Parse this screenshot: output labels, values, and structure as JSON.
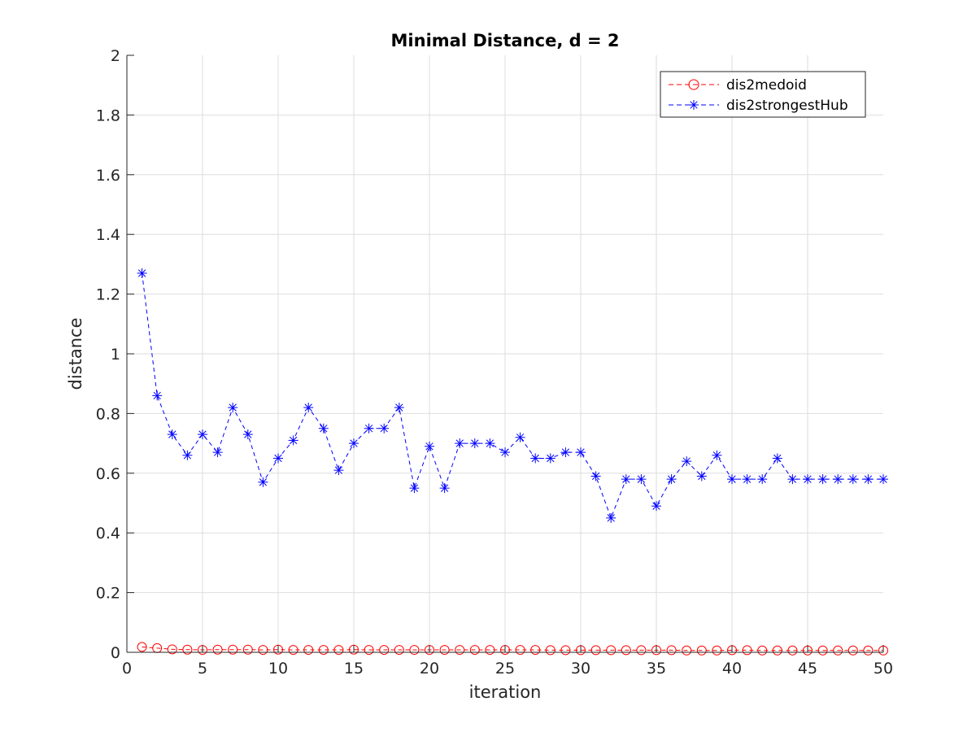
{
  "chart_data": {
    "type": "line",
    "title": "Minimal Distance, d = 2",
    "xlabel": "iteration",
    "ylabel": "distance",
    "xlim": [
      0,
      50
    ],
    "ylim": [
      0,
      2
    ],
    "xticks": [
      0,
      5,
      10,
      15,
      20,
      25,
      30,
      35,
      40,
      45,
      50
    ],
    "xtick_labels": [
      "0",
      "5",
      "10",
      "15",
      "20",
      "25",
      "30",
      "35",
      "40",
      "45",
      "50"
    ],
    "yticks": [
      0,
      0.2,
      0.4,
      0.6,
      0.8,
      1,
      1.2,
      1.4,
      1.6,
      1.8,
      2
    ],
    "ytick_labels": [
      "0",
      "0.2",
      "0.4",
      "0.6",
      "0.8",
      "1",
      "1.2",
      "1.4",
      "1.6",
      "1.8",
      "2"
    ],
    "grid": true,
    "legend_position": "top-right",
    "x": [
      1,
      2,
      3,
      4,
      5,
      6,
      7,
      8,
      9,
      10,
      11,
      12,
      13,
      14,
      15,
      16,
      17,
      18,
      19,
      20,
      21,
      22,
      23,
      24,
      25,
      26,
      27,
      28,
      29,
      30,
      31,
      32,
      33,
      34,
      35,
      36,
      37,
      38,
      39,
      40,
      41,
      42,
      43,
      44,
      45,
      46,
      47,
      48,
      49,
      50
    ],
    "series": [
      {
        "name": "dis2medoid",
        "color": "#ff0000",
        "marker": "circle",
        "line_style": "dashed",
        "values": [
          0.018,
          0.014,
          0.01,
          0.009,
          0.008,
          0.009,
          0.009,
          0.009,
          0.008,
          0.009,
          0.008,
          0.008,
          0.008,
          0.008,
          0.009,
          0.008,
          0.008,
          0.008,
          0.008,
          0.008,
          0.008,
          0.008,
          0.008,
          0.008,
          0.008,
          0.008,
          0.008,
          0.007,
          0.007,
          0.007,
          0.007,
          0.007,
          0.007,
          0.007,
          0.007,
          0.007,
          0.006,
          0.006,
          0.006,
          0.007,
          0.007,
          0.006,
          0.006,
          0.006,
          0.006,
          0.006,
          0.006,
          0.006,
          0.006,
          0.006
        ]
      },
      {
        "name": "dis2strongestHub",
        "color": "#0000ff",
        "marker": "asterisk",
        "line_style": "dashed",
        "values": [
          1.27,
          0.86,
          0.73,
          0.66,
          0.73,
          0.67,
          0.82,
          0.73,
          0.57,
          0.65,
          0.71,
          0.82,
          0.75,
          0.61,
          0.7,
          0.75,
          0.75,
          0.82,
          0.55,
          0.69,
          0.55,
          0.7,
          0.7,
          0.7,
          0.67,
          0.72,
          0.65,
          0.65,
          0.67,
          0.67,
          0.59,
          0.45,
          0.58,
          0.58,
          0.49,
          0.58,
          0.64,
          0.59,
          0.66,
          0.58,
          0.58,
          0.58,
          0.65,
          0.58,
          0.58,
          0.58,
          0.58,
          0.58,
          0.58,
          0.58
        ]
      }
    ]
  }
}
